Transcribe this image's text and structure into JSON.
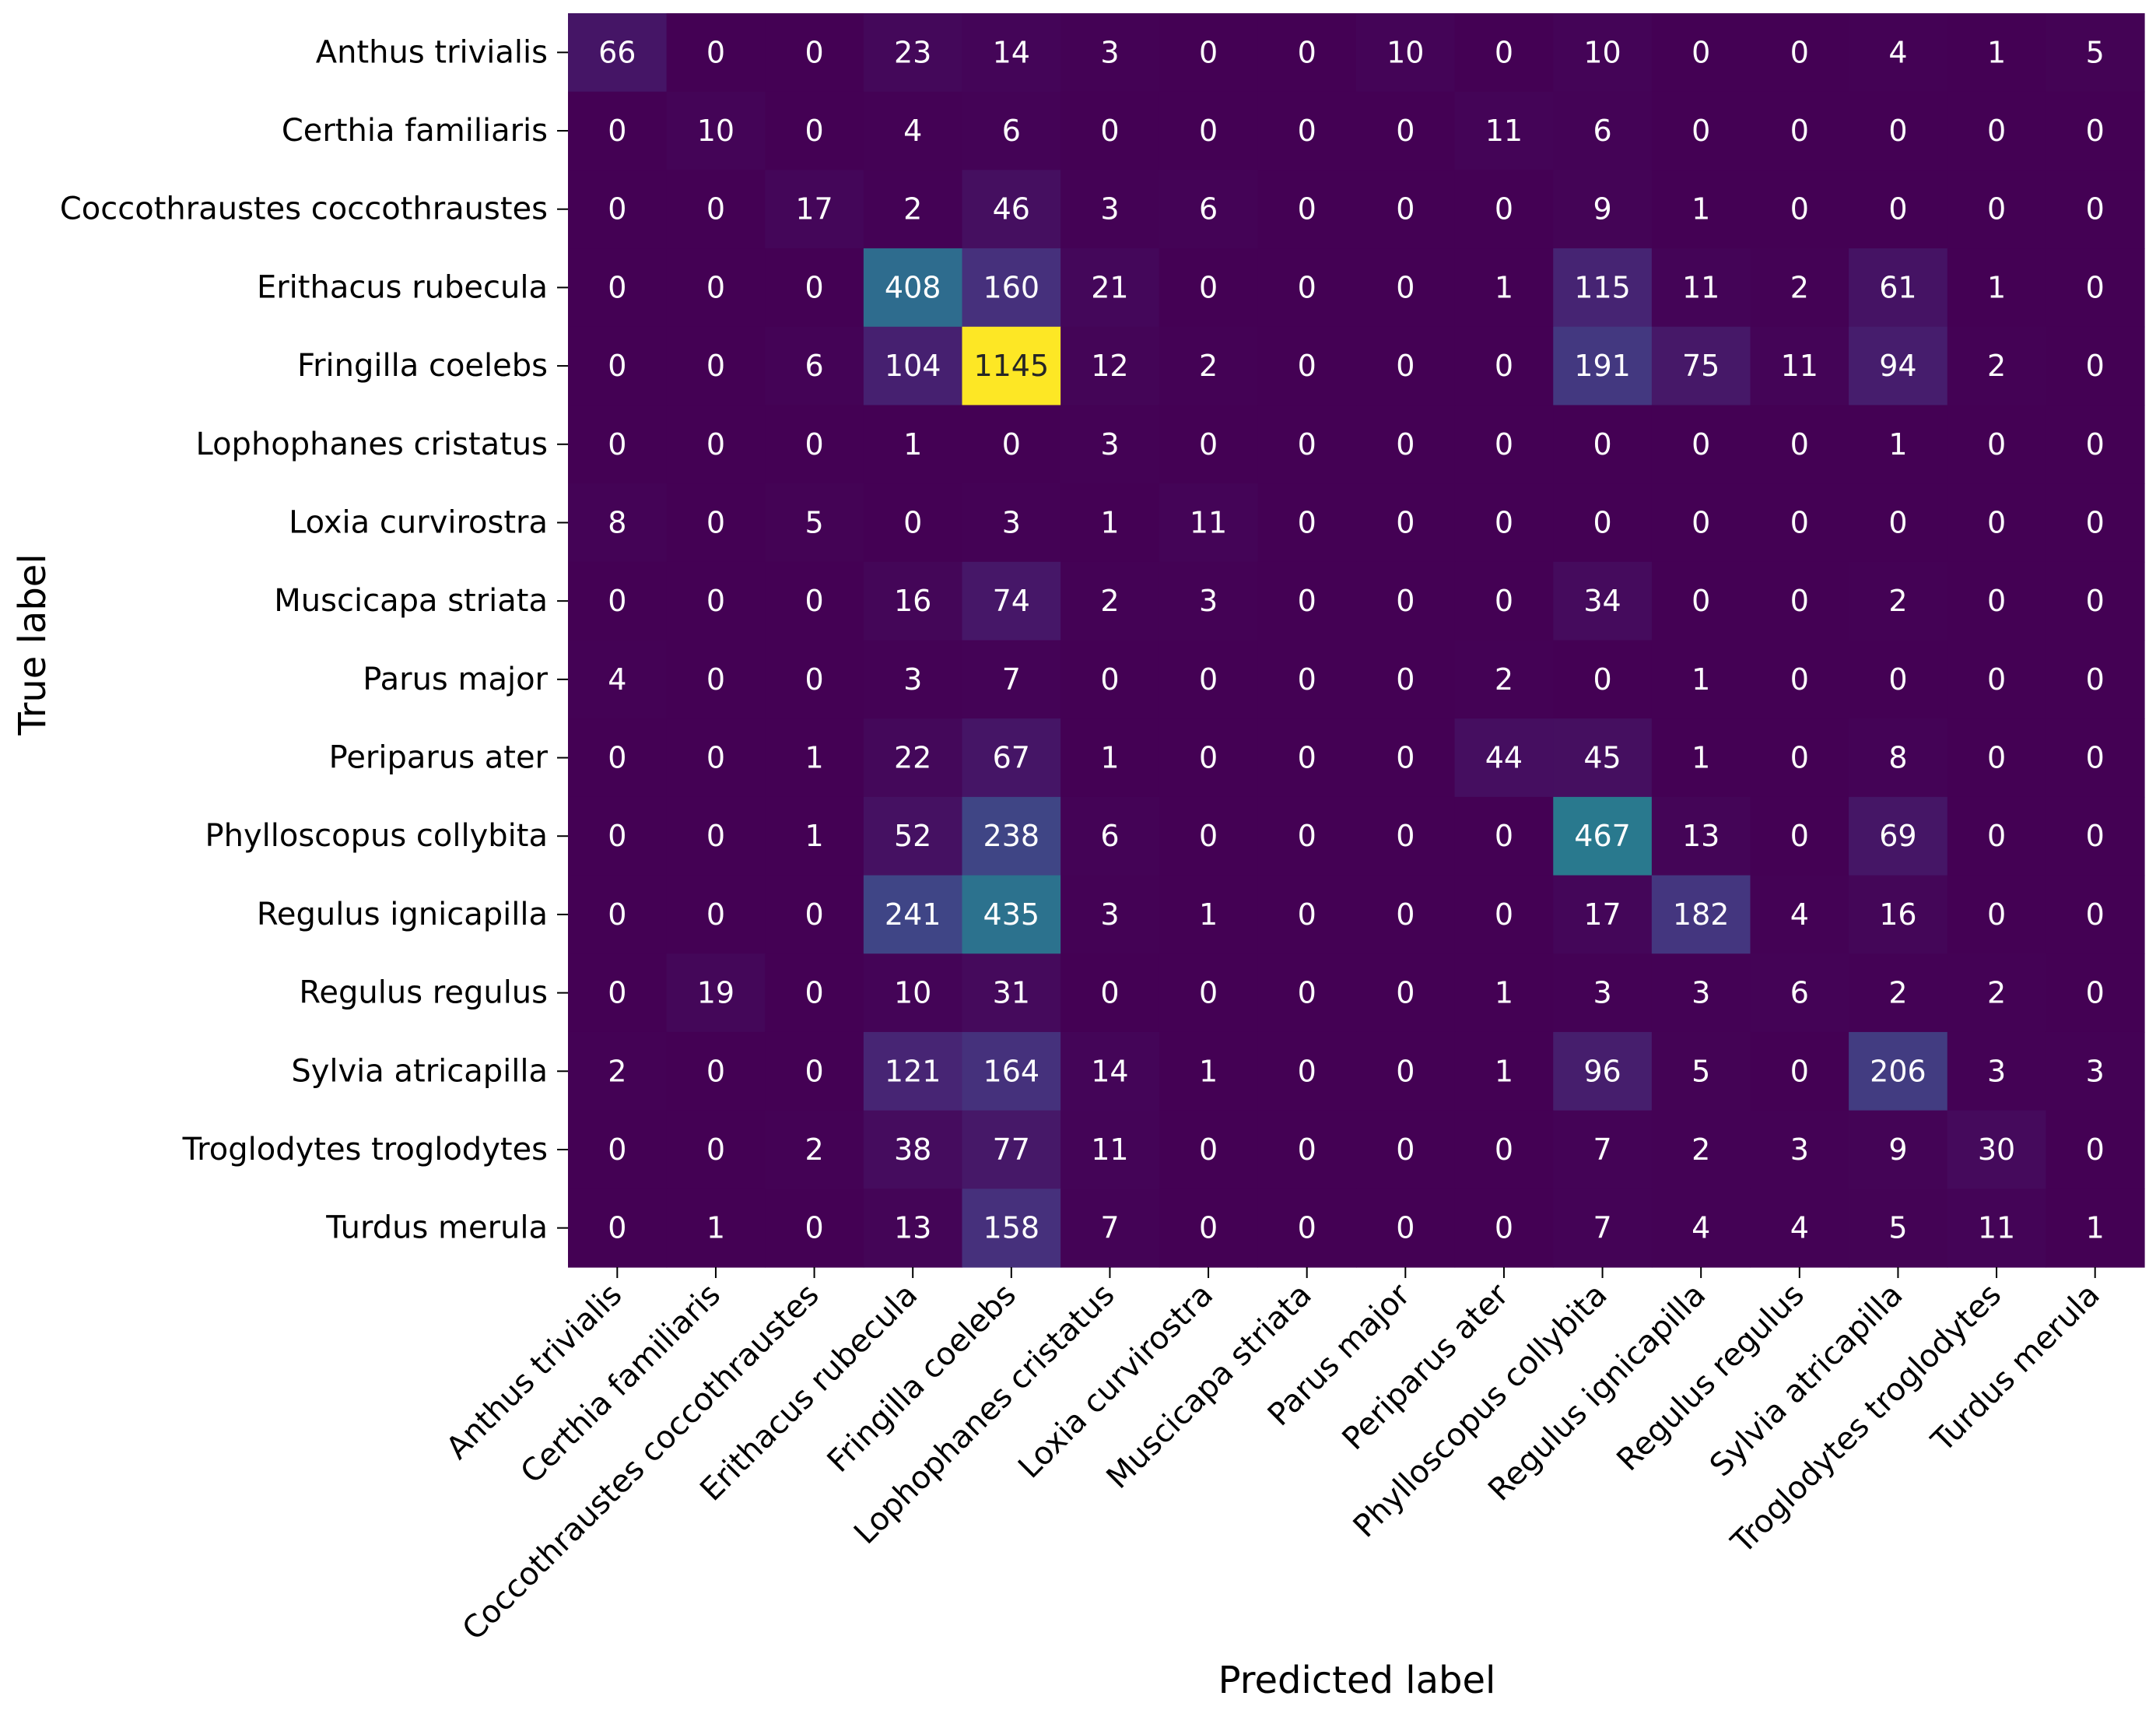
{
  "chart_data": {
    "type": "heatmap",
    "title": "",
    "xlabel": "Predicted label",
    "ylabel": "True label",
    "colormap": "viridis",
    "colorbar": false,
    "grid": false,
    "value_range": [
      0,
      1145
    ],
    "row_labels": [
      "Anthus trivialis",
      "Certhia familiaris",
      "Coccothraustes coccothraustes",
      "Erithacus rubecula",
      "Fringilla coelebs",
      "Lophophanes cristatus",
      "Loxia curvirostra",
      "Muscicapa striata",
      "Parus major",
      "Periparus ater",
      "Phylloscopus collybita",
      "Regulus ignicapilla",
      "Regulus regulus",
      "Sylvia atricapilla",
      "Troglodytes troglodytes",
      "Turdus merula"
    ],
    "col_labels": [
      "Anthus trivialis",
      "Certhia familiaris",
      "Coccothraustes coccothraustes",
      "Erithacus rubecula",
      "Fringilla coelebs",
      "Lophophanes cristatus",
      "Loxia curvirostra",
      "Muscicapa striata",
      "Parus major",
      "Periparus ater",
      "Phylloscopus collybita",
      "Regulus ignicapilla",
      "Regulus regulus",
      "Sylvia atricapilla",
      "Troglodytes troglodytes",
      "Turdus merula"
    ],
    "values": [
      [
        66,
        0,
        0,
        23,
        14,
        3,
        0,
        0,
        10,
        0,
        10,
        0,
        0,
        4,
        1,
        5
      ],
      [
        0,
        10,
        0,
        4,
        6,
        0,
        0,
        0,
        0,
        11,
        6,
        0,
        0,
        0,
        0,
        0
      ],
      [
        0,
        0,
        17,
        2,
        46,
        3,
        6,
        0,
        0,
        0,
        9,
        1,
        0,
        0,
        0,
        0
      ],
      [
        0,
        0,
        0,
        408,
        160,
        21,
        0,
        0,
        0,
        1,
        115,
        11,
        2,
        61,
        1,
        0
      ],
      [
        0,
        0,
        6,
        104,
        1145,
        12,
        2,
        0,
        0,
        0,
        191,
        75,
        11,
        94,
        2,
        0
      ],
      [
        0,
        0,
        0,
        1,
        0,
        3,
        0,
        0,
        0,
        0,
        0,
        0,
        0,
        1,
        0,
        0
      ],
      [
        8,
        0,
        5,
        0,
        3,
        1,
        11,
        0,
        0,
        0,
        0,
        0,
        0,
        0,
        0,
        0
      ],
      [
        0,
        0,
        0,
        16,
        74,
        2,
        3,
        0,
        0,
        0,
        34,
        0,
        0,
        2,
        0,
        0
      ],
      [
        4,
        0,
        0,
        3,
        7,
        0,
        0,
        0,
        0,
        2,
        0,
        1,
        0,
        0,
        0,
        0
      ],
      [
        0,
        0,
        1,
        22,
        67,
        1,
        0,
        0,
        0,
        44,
        45,
        1,
        0,
        8,
        0,
        0
      ],
      [
        0,
        0,
        1,
        52,
        238,
        6,
        0,
        0,
        0,
        0,
        467,
        13,
        0,
        69,
        0,
        0
      ],
      [
        0,
        0,
        0,
        241,
        435,
        3,
        1,
        0,
        0,
        0,
        17,
        182,
        4,
        16,
        0,
        0
      ],
      [
        0,
        19,
        0,
        10,
        31,
        0,
        0,
        0,
        0,
        1,
        3,
        3,
        6,
        2,
        2,
        0
      ],
      [
        2,
        0,
        0,
        121,
        164,
        14,
        1,
        0,
        0,
        1,
        96,
        5,
        0,
        206,
        3,
        3
      ],
      [
        0,
        0,
        2,
        38,
        77,
        11,
        0,
        0,
        0,
        0,
        7,
        2,
        3,
        9,
        30,
        0
      ],
      [
        0,
        1,
        0,
        13,
        158,
        7,
        0,
        0,
        0,
        0,
        7,
        4,
        4,
        5,
        11,
        1
      ]
    ]
  }
}
